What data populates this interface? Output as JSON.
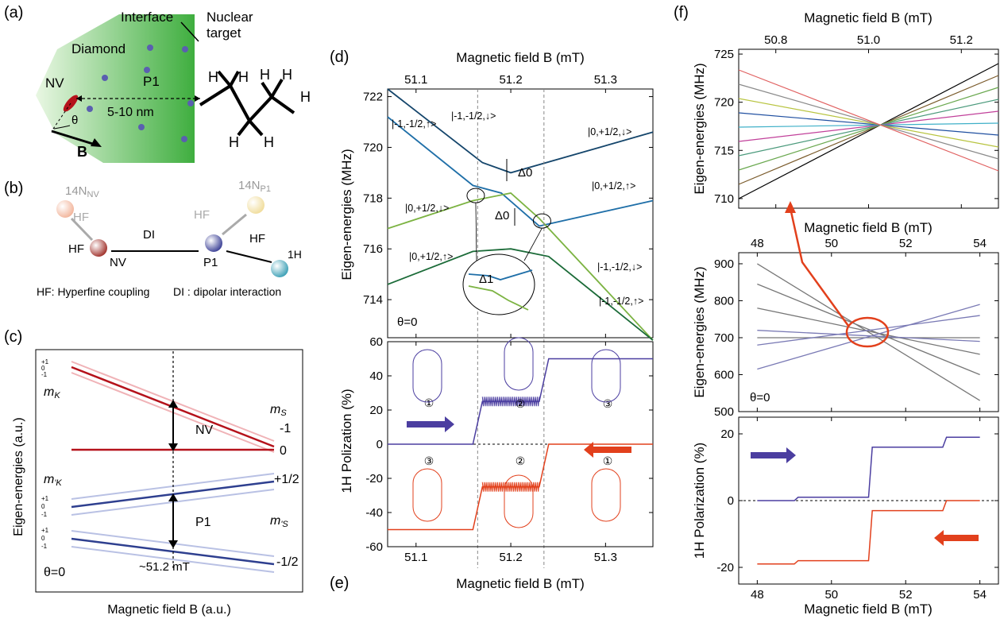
{
  "panel_labels": {
    "a": "(a)",
    "b": "(b)",
    "c": "(c)",
    "d": "(d)",
    "e": "(e)",
    "f": "(f)"
  },
  "colors": {
    "nv_red": "#b5121b",
    "p1_blue": "#2e3f8f",
    "green": "#6aa84f",
    "purple": "#4b3ea0",
    "orange": "#e2401c",
    "dark_green": "#1b6b38",
    "teal": "#1f6fa8",
    "navy": "#14456b"
  },
  "panel_a": {
    "interface": "Interface",
    "nuclear_target": "Nuclear target",
    "diamond": "Diamond",
    "nv": "NV",
    "p1": "P1",
    "distance": "5-10 nm",
    "theta": "θ",
    "b_field": "B",
    "h_atoms": [
      "H",
      "H",
      "H",
      "H",
      "H",
      "H",
      "H"
    ]
  },
  "panel_b": {
    "n_nv": "14N",
    "n_nv_sub": "NV",
    "n_p1": "14N",
    "n_p1_sub": "P1",
    "hf": "HF",
    "di": "DI",
    "nv": "NV",
    "p1": "P1",
    "proton": "1H",
    "legend_hf": "HF: Hyperfine coupling",
    "legend_di": "DI : dipolar interaction"
  },
  "panel_c": {
    "ylabel": "Eigen-energies (a.u.)",
    "xlabel": "Magnetic field B (a.u.)",
    "mk": "m_K",
    "ms": "m_S",
    "mk_prime": "m'_K",
    "ms_prime": "m'_S",
    "nv_label": "NV",
    "p1_label": "P1",
    "field": "~51.2 mT",
    "theta": "θ=0",
    "m_levels": [
      "+1",
      "0",
      "-1"
    ],
    "level_labels": [
      "-1",
      "0",
      "+1/2",
      "-1/2"
    ]
  },
  "chart_data": [
    {
      "type": "line",
      "panel": "d",
      "xlabel": "Magnetic field B (mT)",
      "ylabel": "Eigen-energies (MHz)",
      "xlim": [
        51.07,
        51.35
      ],
      "ylim": [
        712.5,
        722.3
      ],
      "xticks": [
        "51.1",
        "51.2",
        "51.3"
      ],
      "yticks": [
        "714",
        "716",
        "718",
        "720",
        "722"
      ],
      "annotations": [
        "|-1,-1/2,↑>",
        "|-1,-1/2,↓>",
        "|0,+1/2,↓>",
        "|0,+1/2,↑>",
        "|0,+1/2,↓>",
        "|0,+1/2,↑>",
        "|-1,-1/2,↓>",
        "|-1,-1/2,↑>",
        "Δ0",
        "Δ0",
        "Δ1",
        "θ=0"
      ],
      "series": [
        {
          "x": [
            51.07,
            51.17,
            51.2,
            51.35
          ],
          "y": [
            722.3,
            719.4,
            719.0,
            720.6
          ]
        },
        {
          "x": [
            51.07,
            51.16,
            51.19,
            51.23,
            51.35
          ],
          "y": [
            721.2,
            718.5,
            718.2,
            716.9,
            717.9
          ]
        },
        {
          "x": [
            51.07,
            51.16,
            51.2,
            51.23,
            51.35
          ],
          "y": [
            716.8,
            717.9,
            718.2,
            717.2,
            712.4
          ]
        },
        {
          "x": [
            51.07,
            51.16,
            51.2,
            51.24,
            51.35
          ],
          "y": [
            714.6,
            715.9,
            716.0,
            715.7,
            712.4
          ]
        }
      ],
      "vlines": [
        51.165,
        51.235
      ]
    },
    {
      "type": "line",
      "panel": "e",
      "xlabel": "Magnetic field B (mT)",
      "ylabel": "1H Polization (%)",
      "xlim": [
        51.07,
        51.35
      ],
      "ylim": [
        -60,
        60
      ],
      "xticks": [
        "51.1",
        "51.2",
        "51.3"
      ],
      "yticks": [
        "-60",
        "-40",
        "-20",
        "0",
        "20",
        "40",
        "60"
      ],
      "circled": [
        "①",
        "②",
        "③",
        "③",
        "②",
        "①"
      ],
      "series": [
        {
          "x": [
            51.07,
            51.16,
            51.17,
            51.23,
            51.24,
            51.35
          ],
          "y": [
            0,
            0,
            25,
            25,
            50,
            50
          ]
        },
        {
          "x": [
            51.07,
            51.16,
            51.17,
            51.23,
            51.24,
            51.35
          ],
          "y": [
            -50,
            -50,
            -25,
            -25,
            0,
            0
          ]
        }
      ]
    },
    {
      "type": "line",
      "panel": "f-top",
      "xlabel": "Magnetic field B (mT)",
      "ylabel": "Eigen-energies (MHz)",
      "xlim": [
        50.72,
        51.28
      ],
      "ylim": [
        709,
        725.5
      ],
      "xticks": [
        "50.8",
        "51.0",
        "51.2"
      ],
      "yticks": [
        "710",
        "715",
        "720",
        "725"
      ]
    },
    {
      "type": "line",
      "panel": "f-mid",
      "xlabel": "Magnetic field B (mT)",
      "ylabel": "Eigen-energies (MHz)",
      "xlim": [
        47.5,
        54.5
      ],
      "ylim": [
        500,
        930
      ],
      "xticks": [
        "48",
        "50",
        "52",
        "54"
      ],
      "yticks": [
        "500",
        "600",
        "700",
        "800",
        "900"
      ],
      "annotations": [
        "θ=0"
      ]
    },
    {
      "type": "line",
      "panel": "f-bottom",
      "xlabel": "Magnetic field B (mT)",
      "ylabel": "1H Polarization (%)",
      "xlim": [
        47.5,
        54.5
      ],
      "ylim": [
        -25,
        25
      ],
      "xticks": [
        "48",
        "50",
        "52",
        "54"
      ],
      "yticks": [
        "-20",
        "0",
        "20"
      ],
      "series": [
        {
          "x": [
            48,
            49,
            49.1,
            51,
            51.1,
            53,
            53.1,
            54
          ],
          "y": [
            0,
            0,
            1,
            1,
            16,
            16,
            19,
            19
          ]
        },
        {
          "x": [
            48,
            49,
            49.1,
            51,
            51.1,
            53,
            53.1,
            54
          ],
          "y": [
            -19,
            -19,
            -18,
            -18,
            -3,
            -3,
            0,
            0
          ]
        }
      ]
    }
  ]
}
